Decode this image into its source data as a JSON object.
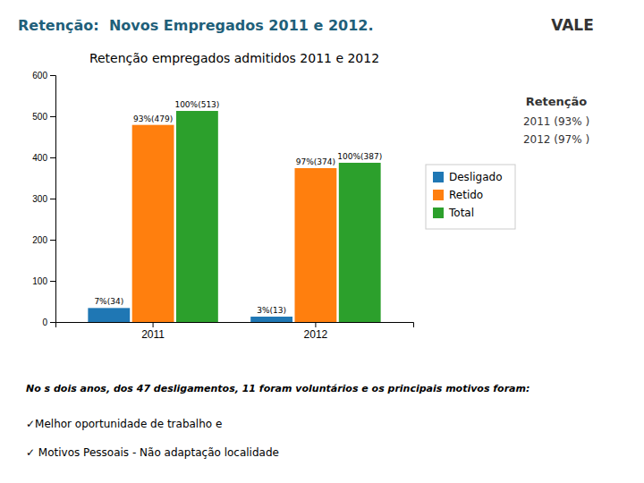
{
  "chart_data": {
    "type": "bar",
    "title": "Retenção empregados admitidos 2011 e 2012",
    "categories": [
      "2011",
      "2012"
    ],
    "series": [
      {
        "name": "Desligado",
        "values": [
          34,
          13
        ],
        "value_labels": [
          "7%(34)",
          "3%(13)"
        ]
      },
      {
        "name": "Retido",
        "values": [
          479,
          374
        ],
        "value_labels": [
          "93%(479)",
          "97%(374)"
        ]
      },
      {
        "name": "Total",
        "values": [
          513,
          387
        ],
        "value_labels": [
          "100%(513)",
          "100%(387)"
        ]
      }
    ],
    "ylim": [
      0,
      600
    ],
    "yticks": [
      0,
      100,
      200,
      300,
      400,
      500,
      600
    ],
    "grid": false,
    "legend": "right",
    "data_labels": true,
    "annotations": [
      "Retenção:  Novos Empregados 2011 e 2012.",
      "VALE",
      "Retenção",
      "2011 (93% )",
      "2012 (97% )",
      "No s dois anos, dos 47 desligamentos, 11 foram voluntários e os principais motivos foram:",
      "✓Melhor oportunidade de trabalho e",
      "✓ Motivos Pessoais - Não adaptação localidade"
    ]
  }
}
